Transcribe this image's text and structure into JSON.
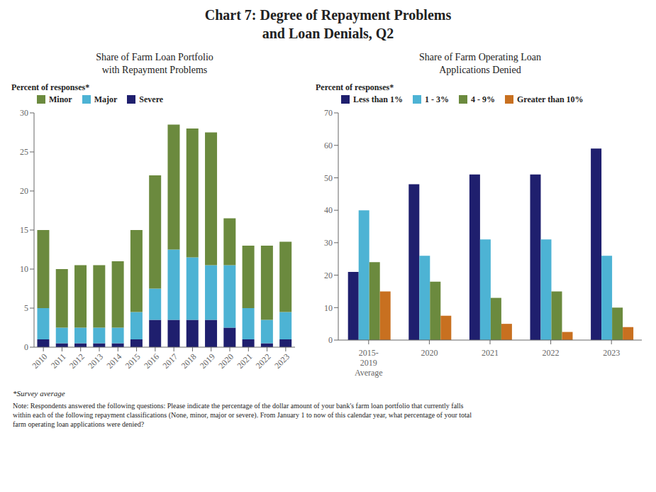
{
  "title": "Chart 7: Degree of Repayment Problems\nand Loan Denials, Q2",
  "annotations": [
    "*Survey average",
    "Note: Respondents answered the following questions: Please indicate the percentage of the dollar amount of your bank's farm loan portfolio that currently falls\nwithin each of the following repayment classifications (None, minor, major or severe). From January 1 to now of this calendar year, what percentage of your total\nfarm operating loan applications were denied?"
  ],
  "chart_data": [
    {
      "type": "bar",
      "subtitle": "Share of Farm Loan Portfolio\nwith Repayment Problems",
      "ylabel": "Percent of responses*",
      "categories": [
        "2010",
        "2011",
        "2012",
        "2013",
        "2014",
        "2015",
        "2016",
        "2017",
        "2018",
        "2019",
        "2020",
        "2021",
        "2022",
        "2023"
      ],
      "series": [
        {
          "name": "Severe",
          "color": "#1f1f6e",
          "values": [
            1.0,
            0.5,
            0.5,
            0.5,
            0.5,
            1.0,
            3.5,
            3.5,
            3.5,
            3.5,
            2.5,
            1.0,
            0.5,
            1.0
          ]
        },
        {
          "name": "Major",
          "color": "#4db3d4",
          "values": [
            4.0,
            2.0,
            2.0,
            2.0,
            2.0,
            3.5,
            4.0,
            9.0,
            8.0,
            7.0,
            8.0,
            4.0,
            3.0,
            3.5
          ]
        },
        {
          "name": "Minor",
          "color": "#6b8a3e",
          "values": [
            10.0,
            7.5,
            8.0,
            8.0,
            8.5,
            10.5,
            14.5,
            16.0,
            16.5,
            17.0,
            6.0,
            8.0,
            9.5,
            9.0
          ]
        }
      ],
      "stacked": true,
      "ylim": [
        0,
        30
      ],
      "yticks": [
        0,
        5,
        10,
        15,
        20,
        25,
        30
      ],
      "grid": false,
      "legend": "upper left"
    },
    {
      "type": "bar",
      "subtitle": "Share of Farm Operating Loan\nApplications Denied",
      "ylabel": "Percent of responses*",
      "categories": [
        "2015-\n2019",
        "2020",
        "2021",
        "2022",
        "2023"
      ],
      "annotations": [
        "Average"
      ],
      "series": [
        {
          "name": "Less than 1%",
          "color": "#1f1f6e",
          "values": [
            21,
            48,
            51,
            51,
            59
          ]
        },
        {
          "name": "1 - 3%",
          "color": "#4db3d4",
          "values": [
            40,
            26,
            31,
            31,
            26
          ]
        },
        {
          "name": "4 - 9%",
          "color": "#6b8a3e",
          "values": [
            24,
            18,
            13,
            15,
            10
          ]
        },
        {
          "name": "Greater than 10%",
          "color": "#c87020",
          "values": [
            15,
            7.5,
            5,
            2.5,
            4
          ]
        }
      ],
      "stacked": false,
      "ylim": [
        0,
        70
      ],
      "yticks": [
        0,
        10,
        20,
        30,
        40,
        50,
        60,
        70
      ],
      "grid": false,
      "legend": "upper left"
    }
  ]
}
